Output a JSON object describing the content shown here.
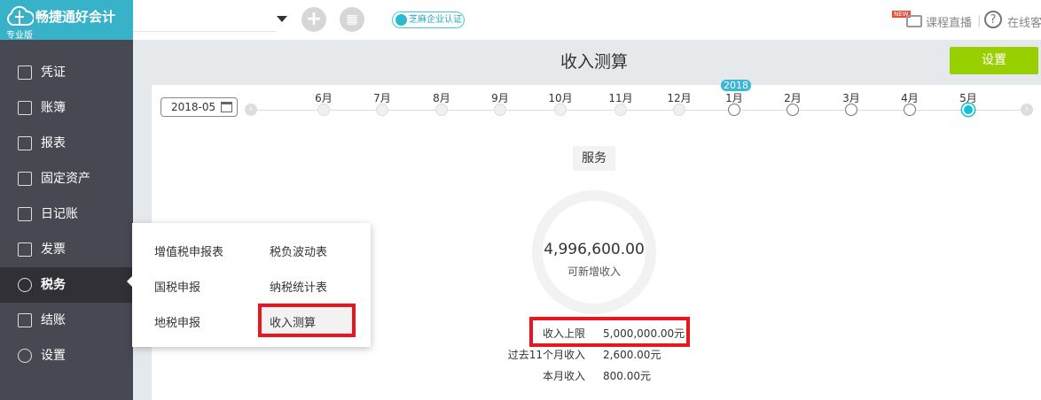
{
  "app": {
    "name": "畅捷通好会计",
    "edition": "专业版"
  },
  "topbar": {
    "zhima": "芝麻企业认证",
    "new_badge": "NEW",
    "live": "课程直播",
    "service": "在线客"
  },
  "sidebar": {
    "items": [
      {
        "label": "凭证"
      },
      {
        "label": "账簿"
      },
      {
        "label": "报表"
      },
      {
        "label": "固定资产"
      },
      {
        "label": "日记账"
      },
      {
        "label": "发票"
      },
      {
        "label": "税务",
        "active": true
      },
      {
        "label": "结账"
      },
      {
        "label": "设置"
      }
    ]
  },
  "page": {
    "title": "收入测算",
    "settings_button": "设置"
  },
  "timeline": {
    "date_value": "2018-05",
    "year_badge": "2018",
    "months": [
      "6月",
      "7月",
      "8月",
      "9月",
      "10月",
      "11月",
      "12月",
      "1月",
      "2月",
      "3月",
      "4月",
      "5月"
    ],
    "selected": "5月"
  },
  "calc": {
    "tag": "服务",
    "amount": "4,996,600.00",
    "amount_label": "可新增收入",
    "rows": [
      {
        "label": "收入上限",
        "value": "5,000,000.00元"
      },
      {
        "label": "过去11个月收入",
        "value": "2,600.00元"
      },
      {
        "label": "本月收入",
        "value": "800.00元"
      }
    ]
  },
  "popup": {
    "items": [
      "增值税申报表",
      "税负波动表",
      "国税申报",
      "纳税统计表",
      "地税申报",
      "收入测算"
    ]
  },
  "colors": {
    "brand": "#38b2c9",
    "accent_green": "#97cf00",
    "highlight": "#e8161e",
    "sidebar": "#484852"
  }
}
